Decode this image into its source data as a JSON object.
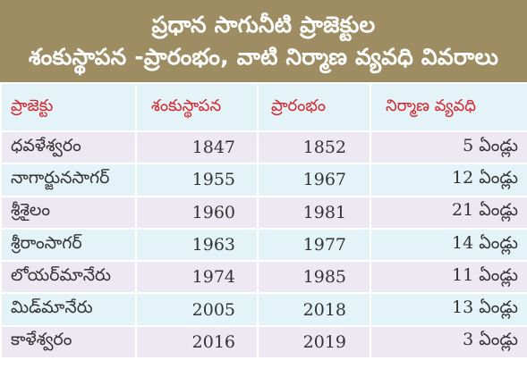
{
  "title": {
    "line1": "ప్రధాన సాగునీటి ప్రాజెక్టుల",
    "line2": "శంకుస్థాపన -ప్రారంభం, వాటి నిర్మాణ వ్యవధి వివరాలు"
  },
  "table": {
    "headers": [
      "ప్రాజెక్టు",
      "శంకుస్థాపన",
      "ప్రారంభం",
      "నిర్మాణ వ్యవధి"
    ],
    "rows": [
      {
        "project": "ధవళేశ్వరం",
        "foundation": "1847",
        "start": "1852",
        "duration": "5",
        "unit": "ఏండ్లు"
      },
      {
        "project": "నాగార్జునసాగర్",
        "foundation": "1955",
        "start": "1967",
        "duration": "12",
        "unit": "ఏండ్లు"
      },
      {
        "project": "శ్రీశైలం",
        "foundation": "1960",
        "start": "1981",
        "duration": "21",
        "unit": "ఏండ్లు"
      },
      {
        "project": "శ్రీరాంసాగర్",
        "foundation": "1963",
        "start": "1977",
        "duration": "14",
        "unit": "ఏండ్లు"
      },
      {
        "project": "లోయర్‌మానేరు",
        "foundation": "1974",
        "start": "1985",
        "duration": "11",
        "unit": "ఏండ్లు"
      },
      {
        "project": "మిడ్‌మానేరు",
        "foundation": "2005",
        "start": "2018",
        "duration": "13",
        "unit": "ఏండ్లు"
      },
      {
        "project": "కాళేశ్వరం",
        "foundation": "2016",
        "start": "2019",
        "duration": "3",
        "unit": "ఏండ్లు"
      }
    ]
  },
  "colors": {
    "header_bg": "#9e8d62",
    "header_text": "#ffffff",
    "column_header_text": "#d8232a",
    "row_odd": "#ece9f3",
    "row_even": "#e4f3f8"
  }
}
